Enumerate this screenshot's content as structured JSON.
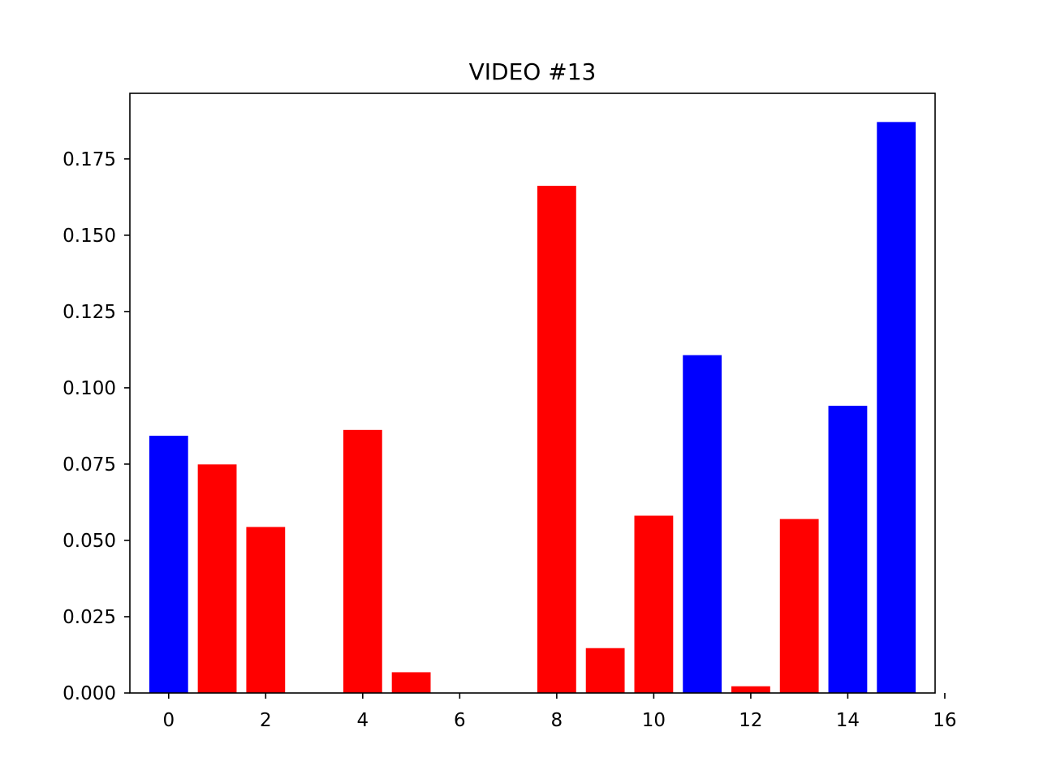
{
  "chart_data": {
    "type": "bar",
    "title": "VIDEO #13",
    "xlabel": "",
    "ylabel": "",
    "x": [
      0,
      1,
      2,
      3,
      4,
      5,
      6,
      7,
      8,
      9,
      10,
      11,
      12,
      13,
      14,
      15
    ],
    "values": [
      0.0843,
      0.0749,
      0.0544,
      0.0,
      0.0862,
      0.0068,
      0.0,
      0.0,
      0.1662,
      0.0147,
      0.0581,
      0.1107,
      0.0022,
      0.057,
      0.0941,
      0.1871
    ],
    "bar_colors": [
      "#0000ff",
      "#ff0000",
      "#ff0000",
      "#ff0000",
      "#ff0000",
      "#ff0000",
      "#ff0000",
      "#ff0000",
      "#ff0000",
      "#ff0000",
      "#ff0000",
      "#0000ff",
      "#ff0000",
      "#ff0000",
      "#0000ff",
      "#0000ff"
    ],
    "xlim": [
      -0.8,
      15.8
    ],
    "ylim": [
      0,
      0.1965
    ],
    "xticks": [
      0,
      2,
      4,
      6,
      8,
      10,
      12,
      14,
      16
    ],
    "xtick_labels": [
      "0",
      "2",
      "4",
      "6",
      "8",
      "10",
      "12",
      "14",
      "16"
    ],
    "yticks": [
      0,
      0.025,
      0.05,
      0.075,
      0.1,
      0.125,
      0.15,
      0.175
    ],
    "ytick_labels": [
      "0.000",
      "0.025",
      "0.050",
      "0.075",
      "0.100",
      "0.125",
      "0.150",
      "0.175"
    ],
    "grid": false,
    "legend": "none"
  }
}
